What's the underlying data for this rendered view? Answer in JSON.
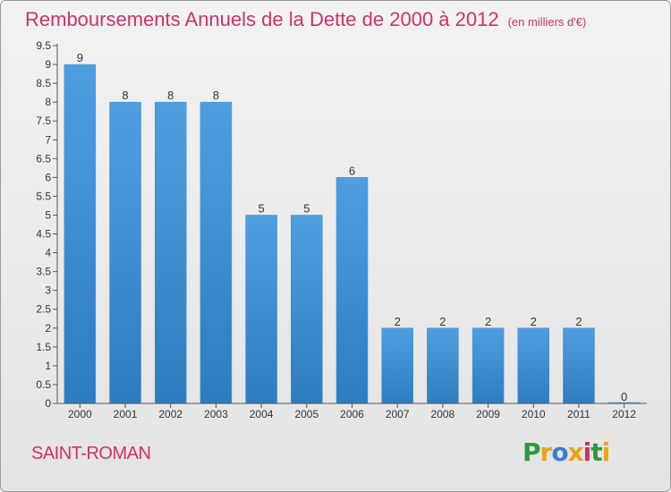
{
  "title": "Remboursements Annuels de la Dette de 2000 à 2012",
  "subtitle": "(en milliers d'€)",
  "place": "SAINT-ROMAN",
  "logo": {
    "letters": [
      "P",
      "r",
      "o",
      "x",
      "i",
      "t",
      "i"
    ],
    "colors": [
      "#2a9a3f",
      "#e8a417",
      "#3a7fd0",
      "#e8a417",
      "#cc3366",
      "#2a9a3f",
      "#e8a417"
    ]
  },
  "colors": {
    "bar": "#4f9fe0",
    "bar_dark": "#2d7cbf",
    "title": "#cc3366"
  },
  "chart_data": {
    "type": "bar",
    "title": "Remboursements Annuels de la Dette de 2000 à 2012",
    "subtitle": "(en milliers d'€)",
    "categories": [
      "2000",
      "2001",
      "2002",
      "2003",
      "2004",
      "2005",
      "2006",
      "2007",
      "2008",
      "2009",
      "2010",
      "2011",
      "2012"
    ],
    "values": [
      9,
      8,
      8,
      8,
      5,
      5,
      6,
      2,
      2,
      2,
      2,
      2,
      0
    ],
    "data_labels": [
      "9",
      "8",
      "8",
      "8",
      "5",
      "5",
      "6",
      "2",
      "2",
      "2",
      "2",
      "2",
      "0"
    ],
    "ylim": [
      0,
      9.5
    ],
    "yticks": [
      0,
      0.5,
      1,
      1.5,
      2,
      2.5,
      3,
      3.5,
      4,
      4.5,
      5,
      5.5,
      6,
      6.5,
      7,
      7.5,
      8,
      8.5,
      9,
      9.5
    ],
    "ytick_labels": [
      "0",
      "0.5",
      "1",
      "1.5",
      "2",
      "2.5",
      "3",
      "3.5",
      "4",
      "4.5",
      "5",
      "5.5",
      "6",
      "6.5",
      "7",
      "7.5",
      "8",
      "8.5",
      "9",
      "9.5"
    ],
    "grid": false,
    "legend": "none"
  }
}
